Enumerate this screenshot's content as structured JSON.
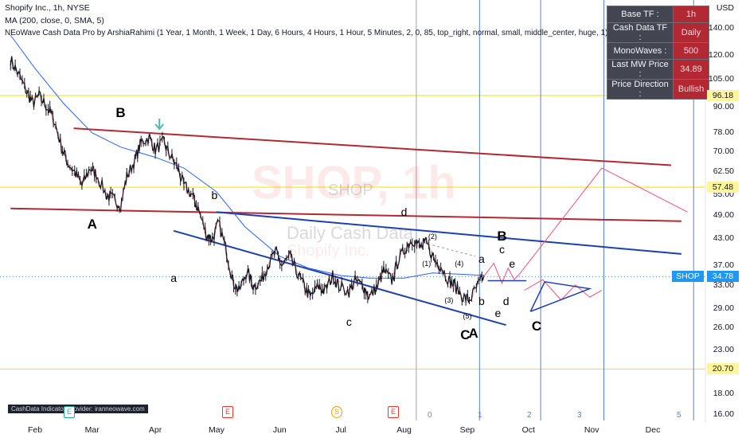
{
  "header": {
    "line1": "Shopify Inc., 1h, NYSE",
    "line2": "MA (200, close, 0, SMA, 5)",
    "line3": "NEoWave Cash Data Pro by ArshiaRahimi (1 Year, 1 Month, 1 Week, 1 Day, 6 Hours, 4 Hours, 1 Hour, 5 Minutes, 2, 0, 85, top_right, normal, small, middle_center, huge, 1)"
  },
  "info_panel": [
    {
      "key": "Base TF :",
      "value": "1h"
    },
    {
      "key": "Cash Data TF :",
      "value": "Daily"
    },
    {
      "key": "MonoWaves :",
      "value": "500"
    },
    {
      "key": "Last MW Price :",
      "value": "34.89"
    },
    {
      "key": "Price Direction :",
      "value": "Bullish"
    }
  ],
  "watermark": {
    "symbol": "SHOP, 1h",
    "subtitle": "SHOP",
    "cash": "Daily Cash Data",
    "name": "Shopify Inc."
  },
  "provider_label": "CashData Indicator Provider: iranneowave.com",
  "events": [
    "E",
    "E",
    "S",
    "E"
  ],
  "vertical_line_numbers": [
    "0",
    "1",
    "2",
    "3",
    "5"
  ],
  "colors": {
    "candles": "#131722",
    "ma": "#2962ff",
    "red_line": "#b22833",
    "blue_line": "#1e3fae",
    "yellow_line": "#ffe500",
    "projection": "#ef5378",
    "grid_v": "#5b7fd6"
  },
  "chart_data": {
    "type": "line",
    "symbol": "SHOP",
    "timeframe": "1h",
    "y_scale": "log",
    "currency": "USD",
    "ylim": [
      15.5,
      160
    ],
    "y_ticks": [
      140.0,
      120.0,
      105.0,
      90.0,
      78.0,
      70.0,
      62.5,
      55.0,
      49.0,
      43.0,
      37.0,
      33.0,
      29.0,
      26.0,
      23.0,
      18.0,
      16.0
    ],
    "x_ticks": [
      "Feb",
      "Mar",
      "Apr",
      "May",
      "Jun",
      "Jul",
      "Aug",
      "Sep",
      "Oct",
      "Nov",
      "Dec"
    ],
    "price_labels": [
      {
        "label": "96.18",
        "value": 96.18,
        "kind": "level"
      },
      {
        "label": "57.48",
        "value": 57.48,
        "kind": "level"
      },
      {
        "label": "SHOP",
        "value": 34.78,
        "kind": "symbol"
      },
      {
        "label": "34.78",
        "value": 34.78,
        "kind": "last"
      },
      {
        "label": "20.70",
        "value": 20.7,
        "kind": "level"
      }
    ],
    "horizontal_levels": [
      96.18,
      57.48,
      20.7
    ],
    "price_series": [
      {
        "t": "Jan 20",
        "v": 118
      },
      {
        "t": "Jan 24",
        "v": 108
      },
      {
        "t": "Jan 28",
        "v": 98
      },
      {
        "t": "Jan 31",
        "v": 92
      },
      {
        "t": "Feb 03",
        "v": 96
      },
      {
        "t": "Feb 07",
        "v": 90
      },
      {
        "t": "Feb 10",
        "v": 85
      },
      {
        "t": "Feb 14",
        "v": 72
      },
      {
        "t": "Feb 17",
        "v": 66
      },
      {
        "t": "Feb 21",
        "v": 62
      },
      {
        "t": "Feb 24",
        "v": 58
      },
      {
        "t": "Feb 28",
        "v": 64
      },
      {
        "t": "Mar 03",
        "v": 62
      },
      {
        "t": "Mar 08",
        "v": 55
      },
      {
        "t": "Mar 11",
        "v": 54
      },
      {
        "t": "Mar 15",
        "v": 52
      },
      {
        "t": "Mar 18",
        "v": 61
      },
      {
        "t": "Mar 22",
        "v": 67
      },
      {
        "t": "Mar 25",
        "v": 74
      },
      {
        "t": "Mar 29",
        "v": 76
      },
      {
        "t": "Apr 01",
        "v": 71
      },
      {
        "t": "Apr 05",
        "v": 74
      },
      {
        "t": "Apr 08",
        "v": 69
      },
      {
        "t": "Apr 12",
        "v": 64
      },
      {
        "t": "Apr 15",
        "v": 58
      },
      {
        "t": "Apr 19",
        "v": 55
      },
      {
        "t": "Apr 22",
        "v": 51
      },
      {
        "t": "Apr 26",
        "v": 44
      },
      {
        "t": "Apr 29",
        "v": 43
      },
      {
        "t": "May 02",
        "v": 47
      },
      {
        "t": "May 06",
        "v": 40
      },
      {
        "t": "May 09",
        "v": 34
      },
      {
        "t": "May 12",
        "v": 32
      },
      {
        "t": "May 16",
        "v": 36
      },
      {
        "t": "May 19",
        "v": 33
      },
      {
        "t": "May 23",
        "v": 34
      },
      {
        "t": "May 26",
        "v": 37
      },
      {
        "t": "May 30",
        "v": 40
      },
      {
        "t": "Jun 02",
        "v": 37
      },
      {
        "t": "Jun 06",
        "v": 39
      },
      {
        "t": "Jun 09",
        "v": 36
      },
      {
        "t": "Jun 13",
        "v": 33
      },
      {
        "t": "Jun 16",
        "v": 31
      },
      {
        "t": "Jun 20",
        "v": 33
      },
      {
        "t": "Jun 23",
        "v": 32
      },
      {
        "t": "Jun 27",
        "v": 35
      },
      {
        "t": "Jun 30",
        "v": 33
      },
      {
        "t": "Jul 05",
        "v": 32
      },
      {
        "t": "Jul 08",
        "v": 34
      },
      {
        "t": "Jul 12",
        "v": 33
      },
      {
        "t": "Jul 15",
        "v": 31
      },
      {
        "t": "Jul 19",
        "v": 33
      },
      {
        "t": "Jul 22",
        "v": 36
      },
      {
        "t": "Jul 26",
        "v": 34
      },
      {
        "t": "Jul 29",
        "v": 38
      },
      {
        "t": "Aug 02",
        "v": 41
      },
      {
        "t": "Aug 05",
        "v": 43
      },
      {
        "t": "Aug 09",
        "v": 41
      },
      {
        "t": "Aug 12",
        "v": 42
      },
      {
        "t": "Aug 16",
        "v": 38
      },
      {
        "t": "Aug 19",
        "v": 37
      },
      {
        "t": "Aug 23",
        "v": 34
      },
      {
        "t": "Aug 26",
        "v": 33
      },
      {
        "t": "Aug 30",
        "v": 31
      },
      {
        "t": "Sep 02",
        "v": 30.5
      },
      {
        "t": "Sep 06",
        "v": 33
      },
      {
        "t": "Sep 09",
        "v": 34.78
      }
    ],
    "ma200": [
      {
        "t": "Jan 20",
        "v": 135
      },
      {
        "t": "Feb 01",
        "v": 112
      },
      {
        "t": "Feb 15",
        "v": 92
      },
      {
        "t": "Mar 01",
        "v": 78
      },
      {
        "t": "Mar 15",
        "v": 72
      },
      {
        "t": "Apr 01",
        "v": 68
      },
      {
        "t": "Apr 15",
        "v": 64
      },
      {
        "t": "May 01",
        "v": 56
      },
      {
        "t": "May 15",
        "v": 46
      },
      {
        "t": "Jun 01",
        "v": 39
      },
      {
        "t": "Jun 15",
        "v": 36.5
      },
      {
        "t": "Jul 01",
        "v": 35
      },
      {
        "t": "Jul 15",
        "v": 34.5
      },
      {
        "t": "Aug 01",
        "v": 34.5
      },
      {
        "t": "Aug 15",
        "v": 35.5
      },
      {
        "t": "Sep 01",
        "v": 35.2
      },
      {
        "t": "Sep 09",
        "v": 35.0
      }
    ],
    "trend_lines": [
      {
        "color": "red",
        "from": {
          "t": "Feb 20",
          "v": 80
        },
        "to": {
          "t": "Dec 10",
          "v": 65
        }
      },
      {
        "color": "red",
        "from": {
          "t": "Jan 20",
          "v": 51
        },
        "to": {
          "t": "Dec 15",
          "v": 47.5
        }
      },
      {
        "color": "blue",
        "from": {
          "t": "May 01",
          "v": 50
        },
        "to": {
          "t": "Dec 15",
          "v": 39.5
        }
      },
      {
        "color": "blue",
        "from": {
          "t": "Apr 10",
          "v": 45
        },
        "to": {
          "t": "Sep 20",
          "v": 26.5
        }
      }
    ],
    "wave_labels": [
      {
        "label": "B",
        "t": "Mar 15",
        "v": 87
      },
      {
        "label": "A",
        "t": "Mar 01",
        "v": 46.5
      },
      {
        "label": "b",
        "t": "Apr 30",
        "v": 55
      },
      {
        "label": "a",
        "t": "Apr 10",
        "v": 34.5
      },
      {
        "label": "d",
        "t": "Aug 01",
        "v": 50
      },
      {
        "label": "c",
        "t": "Jul 05",
        "v": 27
      },
      {
        "label": "(2)",
        "t": "Aug 15",
        "v": 43.5
      },
      {
        "label": "(1)",
        "t": "Aug 12",
        "v": 37.5
      },
      {
        "label": "(4)",
        "t": "Aug 28",
        "v": 37.5
      },
      {
        "label": "(3)",
        "t": "Aug 23",
        "v": 30.5
      },
      {
        "label": "(5)",
        "t": "Sep 01",
        "v": 27.8
      },
      {
        "label": "C",
        "t": "Aug 31",
        "v": 25
      },
      {
        "label": "A",
        "t": "Sep 04",
        "v": 25.3
      },
      {
        "label": "a",
        "t": "Sep 08",
        "v": 38.5
      },
      {
        "label": "b",
        "t": "Sep 08",
        "v": 30.3
      },
      {
        "label": "B",
        "t": "Sep 18",
        "v": 43.5
      },
      {
        "label": "c",
        "t": "Sep 18",
        "v": 40.5
      },
      {
        "label": "d",
        "t": "Sep 20",
        "v": 30.3
      },
      {
        "label": "e",
        "t": "Sep 23",
        "v": 37.5
      },
      {
        "label": "e",
        "t": "Sep 16",
        "v": 28.3
      },
      {
        "label": "C",
        "t": "Oct 05",
        "v": 26.3
      }
    ]
  }
}
